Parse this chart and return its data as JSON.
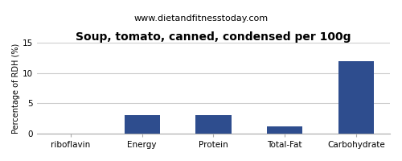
{
  "title": "Soup, tomato, canned, condensed per 100g",
  "subtitle": "www.dietandfitnesstoday.com",
  "categories": [
    "riboflavin",
    "Energy",
    "Protein",
    "Total-Fat",
    "Carbohydrate"
  ],
  "values": [
    0.0,
    3.0,
    3.0,
    1.2,
    12.0
  ],
  "bar_color": "#2e4d8e",
  "ylabel": "Percentage of RDH (%)",
  "ylim": [
    0,
    15
  ],
  "yticks": [
    0,
    5,
    10,
    15
  ],
  "background_color": "#ffffff",
  "plot_bg_color": "#ffffff",
  "grid_color": "#cccccc",
  "title_fontsize": 10,
  "subtitle_fontsize": 8,
  "ylabel_fontsize": 7,
  "tick_fontsize": 7.5
}
